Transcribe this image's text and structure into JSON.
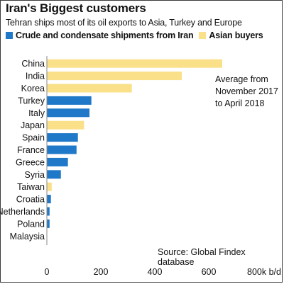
{
  "chart_data": {
    "type": "bar",
    "orientation": "horizontal",
    "title": "Iran's Biggest customers",
    "subtitle": "Tehran ships most of its oil exports to Asia, Turkey and Europe",
    "unit_label": "800k b/d",
    "xlim": [
      0,
      800
    ],
    "xticks": [
      "0",
      "200",
      "400",
      "600",
      "800k b/d"
    ],
    "legend": [
      {
        "name": "Crude and condensate shipments from Iran",
        "color": "#1f78c8"
      },
      {
        "name": "Asian buyers",
        "color": "#fbe08a"
      }
    ],
    "categories": [
      "China",
      "India",
      "Korea",
      "Turkey",
      "Italy",
      "Japan",
      "Spain",
      "France",
      "Greece",
      "Syria",
      "Taiwan",
      "Croatia",
      "Netherlands",
      "Poland",
      "Malaysia"
    ],
    "values": [
      650,
      500,
      315,
      165,
      158,
      138,
      115,
      110,
      78,
      52,
      18,
      15,
      10,
      10,
      0
    ],
    "groups": [
      "asian",
      "asian",
      "asian",
      "crude",
      "crude",
      "asian",
      "crude",
      "crude",
      "crude",
      "crude",
      "asian",
      "crude",
      "crude",
      "crude",
      "asian"
    ],
    "annotation": "Average from November 2017 to April 2018",
    "annotation_lines": [
      "Average from",
      "November 2017",
      "to April 2018"
    ],
    "source": "Source: Global Findex database",
    "grid": false
  },
  "colors": {
    "crude": "#1f78c8",
    "asian": "#fbe08a",
    "axis": "#888888"
  }
}
